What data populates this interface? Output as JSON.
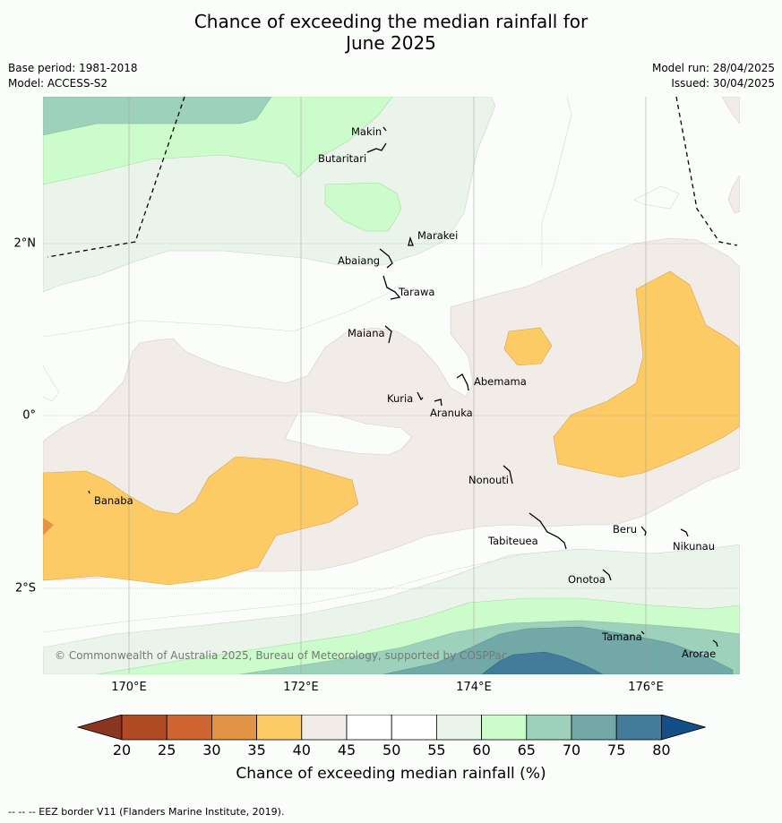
{
  "title_line1": "Chance of exceeding the median rainfall for",
  "title_line2": "June 2025",
  "base_period": "Base period: 1981-2018",
  "model": "Model: ACCESS-S2",
  "model_run": "Model run: 28/04/2025",
  "issued": "Issued: 30/04/2025",
  "map": {
    "x_ticks": [
      "170°E",
      "172°E",
      "174°E",
      "176°E"
    ],
    "y_ticks": [
      "2°N",
      "0°",
      "2°S"
    ],
    "islands": [
      "Makin",
      "Butaritari",
      "Marakei",
      "Abaiang",
      "Tarawa",
      "Maiana",
      "Abemama",
      "Kuria",
      "Aranuka",
      "Nonouti",
      "Banaba",
      "Tabiteuea",
      "Beru",
      "Nikunau",
      "Onotoa",
      "Tamana",
      "Arorae"
    ],
    "copyright": "© Commonwealth of Australia 2025, Bureau of Meteorology, supported by COSPPac"
  },
  "colorbar": {
    "ticks": [
      "20",
      "25",
      "30",
      "35",
      "40",
      "45",
      "50",
      "55",
      "60",
      "65",
      "70",
      "75",
      "80"
    ],
    "colors": [
      "#b34a26",
      "#cf6632",
      "#e39346",
      "#fdcb66",
      "#f2ece8",
      "#fefefe",
      "#fefefe",
      "#ebf4eb",
      "#ccfbcc",
      "#9ed1bb",
      "#72a8a8",
      "#437c9a"
    ],
    "under_color": "#8a3520",
    "over_color": "#144e86",
    "label": "Chance of exceeding median rainfall (%)"
  },
  "footer": "--  --  -- EEZ border V11 (Flanders Marine Institute, 2019)."
}
